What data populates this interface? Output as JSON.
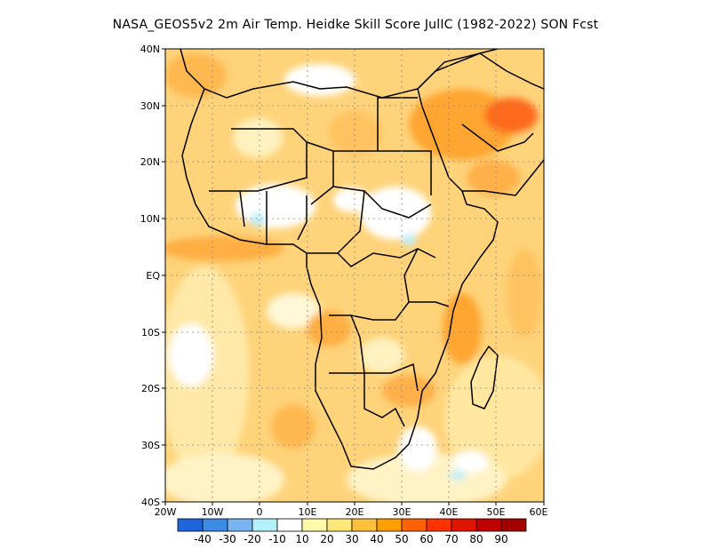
{
  "title": "NASA_GEOS5v2  2m Air Temp. Heidke Skill Score JulIC (1982-2022) SON Fcst",
  "map": {
    "lat_labels": [
      "40N",
      "30N",
      "20N",
      "10N",
      "EQ",
      "10S",
      "20S",
      "30S",
      "40S"
    ],
    "lon_labels": [
      "20W",
      "10W",
      "0",
      "10E",
      "20E",
      "30E",
      "40E",
      "50E",
      "60E"
    ],
    "lon_range": [
      -20,
      60
    ],
    "lat_range": [
      -40,
      40
    ],
    "grid": "dotted"
  },
  "colorbar": {
    "labels": [
      "-40",
      "-30",
      "-20",
      "-10",
      "10",
      "20",
      "30",
      "40",
      "50",
      "60",
      "70",
      "80",
      "90"
    ],
    "colors": [
      "#1e64dc",
      "#3c8ce6",
      "#78b4f0",
      "#b4f0fa",
      "#ffffff",
      "#fffaaa",
      "#ffe878",
      "#ffc03c",
      "#ffa000",
      "#ff6000",
      "#ff3200",
      "#e11400",
      "#c00000",
      "#a50000"
    ]
  }
}
